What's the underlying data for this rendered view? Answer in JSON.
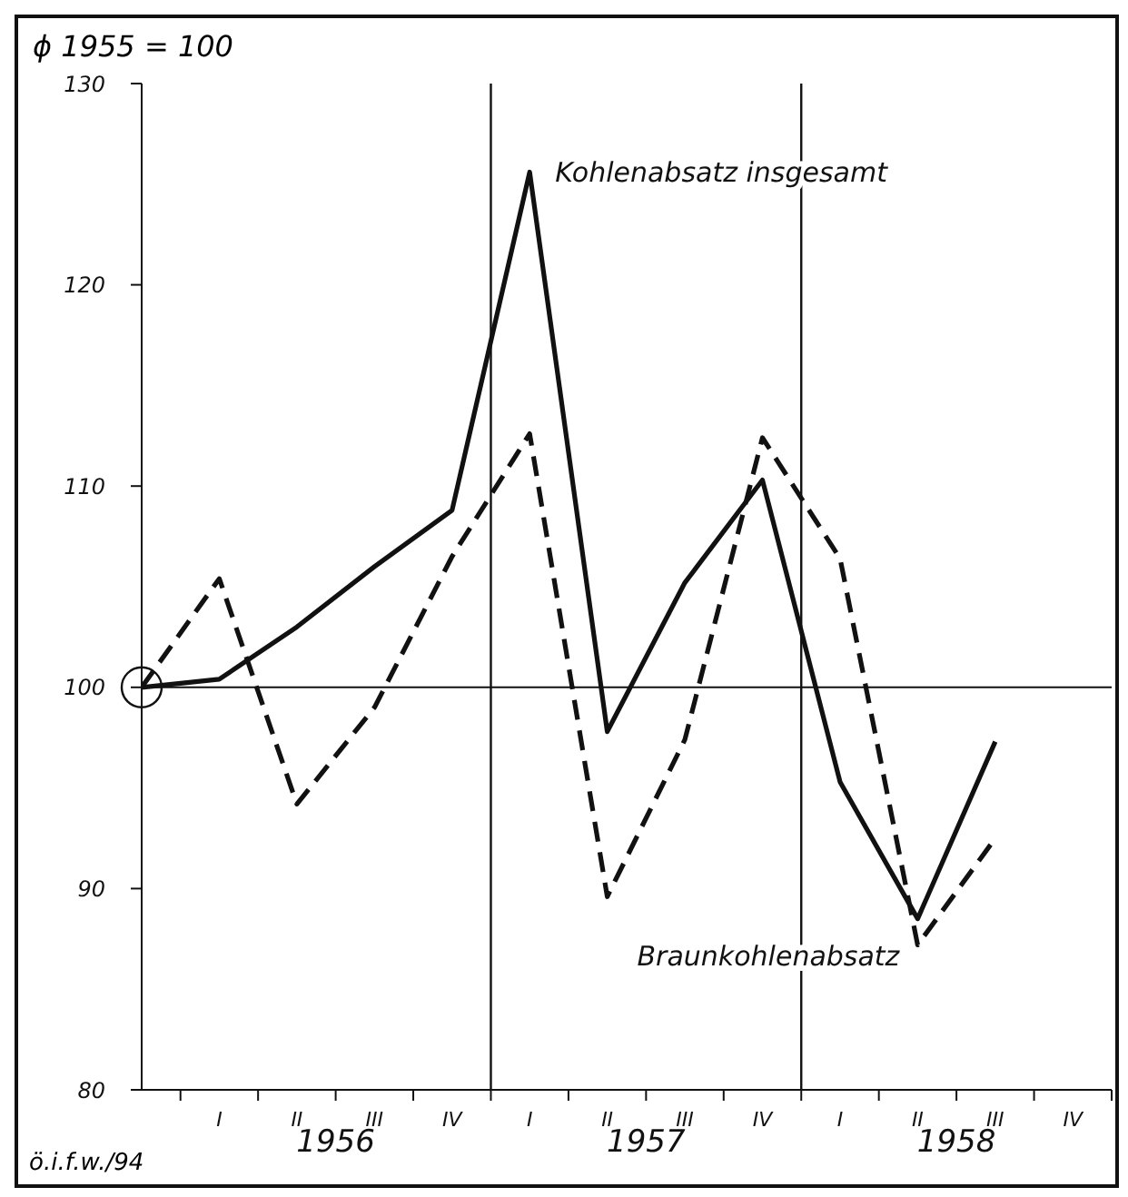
{
  "chart_data": {
    "type": "line",
    "ylabel": "ϕ 1955 = 100",
    "categories": [
      null,
      "I",
      "II",
      "III",
      "IV",
      "I",
      "II",
      "III",
      "IV",
      "I",
      "II",
      "III",
      "IV"
    ],
    "series": [
      {
        "name": "Kohlenabsatz insgesamt",
        "color": "#111111",
        "line_style": "solid",
        "values": [
          100,
          100.4,
          103,
          106,
          108.8,
          125.6,
          97.8,
          105.2,
          110.3,
          95.3,
          88.5,
          97.3,
          null
        ]
      },
      {
        "name": "Braunkohlenabsatz",
        "color": "#111111",
        "line_style": "dashed",
        "values": [
          100,
          105.4,
          94.2,
          99,
          106.5,
          112.6,
          89.6,
          97.4,
          112.4,
          106.4,
          87.2,
          92.5,
          null
        ]
      }
    ],
    "ylim": [
      80,
      130
    ],
    "yticks": [
      80,
      90,
      100,
      110,
      120,
      130
    ],
    "ref_lines": [
      {
        "axis": "y",
        "value": 100
      }
    ],
    "annotations": [
      "ö.i.f.w./94",
      "1956",
      "1957",
      "1958"
    ],
    "marker": "none"
  }
}
